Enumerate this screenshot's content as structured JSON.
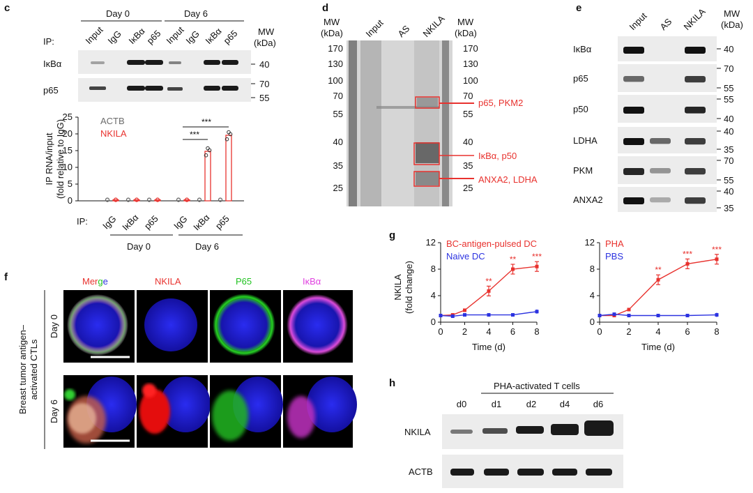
{
  "panel_letters": {
    "c": "c",
    "d": "d",
    "e": "e",
    "f": "f",
    "g": "g",
    "h": "h"
  },
  "c": {
    "groups": [
      "Day 0",
      "Day 6"
    ],
    "ip_label": "IP:",
    "lanes": [
      "Input",
      "IgG",
      "IκBα",
      "p65",
      "Input",
      "IgG",
      "IκBα",
      "p65"
    ],
    "mw_header": [
      "MW",
      "(kDa)"
    ],
    "blot_rows": [
      {
        "label": "IκBα",
        "mw": [
          "40"
        ]
      },
      {
        "label": "p65",
        "mw": [
          "70",
          "55"
        ]
      }
    ],
    "chart_data": {
      "type": "bar",
      "ylabel": "IP RNA/input",
      "ylabel2": "(fold relative to IgG)",
      "ylim": [
        0,
        25
      ],
      "yticks": [
        "0",
        "5",
        "10",
        "15",
        "20",
        "25"
      ],
      "legend": [
        {
          "name": "ACTB",
          "color": "#6b6b6b"
        },
        {
          "name": "NKILA",
          "color": "#e8322e"
        }
      ],
      "categories": [
        "IgG",
        "IκBα",
        "p65",
        "IgG",
        "IκBα",
        "p65"
      ],
      "groups": [
        "Day 0",
        "Day 6"
      ],
      "series": [
        {
          "name": "ACTB",
          "values": [
            0.3,
            0.3,
            0.3,
            0.3,
            0.3,
            0.3
          ]
        },
        {
          "name": "NKILA",
          "values": [
            0.3,
            0.3,
            0.3,
            0.3,
            14.8,
            19.6
          ]
        }
      ],
      "significance": [
        "***",
        "***"
      ],
      "x_prefix": "IP:"
    }
  },
  "d": {
    "lanes": [
      "Input",
      "AS",
      "NKILA"
    ],
    "mw_header": [
      "MW",
      "(kDa)"
    ],
    "mw_left": [
      "170",
      "130",
      "100",
      "70",
      "55",
      "40",
      "35",
      "25"
    ],
    "mw_right": [
      "170",
      "130",
      "100",
      "70",
      "55",
      "40",
      "35",
      "25"
    ],
    "annotations": [
      "p65, PKM2",
      "IκBα, p50",
      "ANXA2, LDHA"
    ]
  },
  "e": {
    "lanes": [
      "Input",
      "AS",
      "NKILA"
    ],
    "mw_header": [
      "MW",
      "(kDa)"
    ],
    "rows": [
      {
        "label": "IκBα",
        "mw": [
          "40"
        ]
      },
      {
        "label": "p65",
        "mw": [
          "70",
          "55"
        ]
      },
      {
        "label": "p50",
        "mw": [
          "55",
          "40"
        ]
      },
      {
        "label": "LDHA",
        "mw": [
          "40",
          "35"
        ]
      },
      {
        "label": "PKM",
        "mw": [
          "70",
          "55"
        ]
      },
      {
        "label": "ANXA2",
        "mw": [
          "40",
          "35"
        ]
      }
    ]
  },
  "f": {
    "side_label": [
      "Breast tumor antigen–",
      "activated CTLs"
    ],
    "columns": [
      "Merge",
      "NKILA",
      "P65",
      "IκBα"
    ],
    "rows": [
      "Day 0",
      "Day 6"
    ]
  },
  "g": {
    "charts": [
      {
        "type": "line",
        "xlabel": "Time (d)",
        "ylabel": "NKILA",
        "ylabel2": "(fold change)",
        "ylim": [
          0,
          12
        ],
        "yticks": [
          "0",
          "4",
          "8",
          "12"
        ],
        "xticks": [
          "0",
          "2",
          "4",
          "6",
          "8"
        ],
        "x": [
          0,
          1,
          2,
          4,
          6,
          8
        ],
        "series": [
          {
            "name": "BC-antigen-pulsed DC",
            "color": "#e8322e",
            "values": [
              1.0,
              1.1,
              1.8,
              4.7,
              8.0,
              8.4
            ]
          },
          {
            "name": "Naive DC",
            "color": "#2b32e0",
            "values": [
              1.0,
              0.9,
              1.1,
              1.1,
              1.1,
              1.6
            ]
          }
        ],
        "significance": [
          "**",
          "**",
          "***"
        ]
      },
      {
        "type": "line",
        "xlabel": "Time (d)",
        "ylabel": "",
        "ylim": [
          0,
          12
        ],
        "yticks": [
          "0",
          "4",
          "8",
          "12"
        ],
        "xticks": [
          "0",
          "2",
          "4",
          "6",
          "8"
        ],
        "x": [
          0,
          1,
          2,
          4,
          6,
          8
        ],
        "series": [
          {
            "name": "PHA",
            "color": "#e8322e",
            "values": [
              1.0,
              1.0,
              1.9,
              6.4,
              8.8,
              9.5
            ]
          },
          {
            "name": "PBS",
            "color": "#2b32e0",
            "values": [
              1.0,
              1.2,
              1.0,
              1.0,
              1.0,
              1.1
            ]
          }
        ],
        "significance": [
          "**",
          "***",
          "***"
        ]
      }
    ]
  },
  "h": {
    "header": "PHA-activated T cells",
    "lanes": [
      "d0",
      "d1",
      "d2",
      "d4",
      "d6"
    ],
    "rows": [
      "NKILA",
      "ACTB"
    ]
  }
}
